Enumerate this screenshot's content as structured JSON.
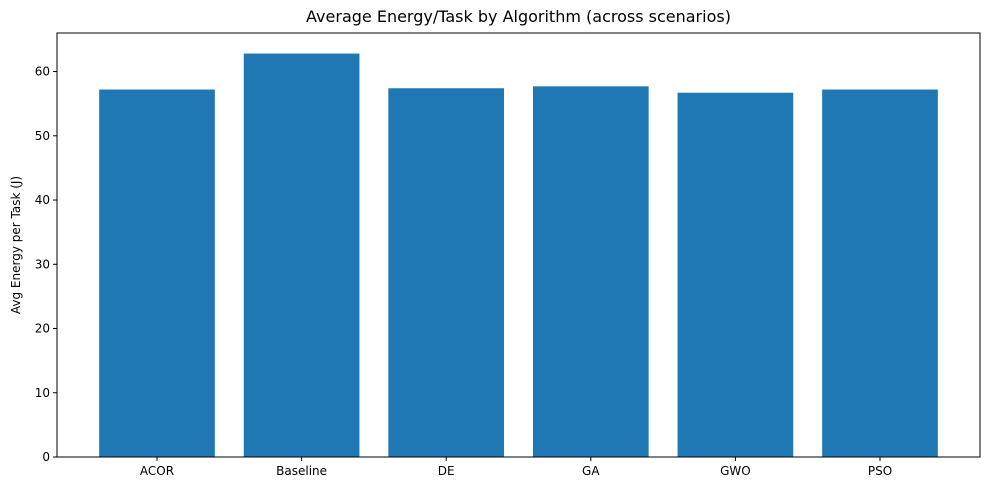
{
  "chart_data": {
    "type": "bar",
    "title": "Average Energy/Task by Algorithm (across scenarios)",
    "xlabel": "",
    "ylabel": "Avg Energy per Task (J)",
    "categories": [
      "ACOR",
      "Baseline",
      "DE",
      "GA",
      "GWO",
      "PSO"
    ],
    "values": [
      57.2,
      62.8,
      57.4,
      57.7,
      56.7,
      57.2
    ],
    "ylim": [
      0,
      66
    ],
    "yticks": [
      0,
      10,
      20,
      30,
      40,
      50,
      60
    ],
    "grid": false,
    "legend": "none",
    "bar_color": "#1f77b4"
  }
}
